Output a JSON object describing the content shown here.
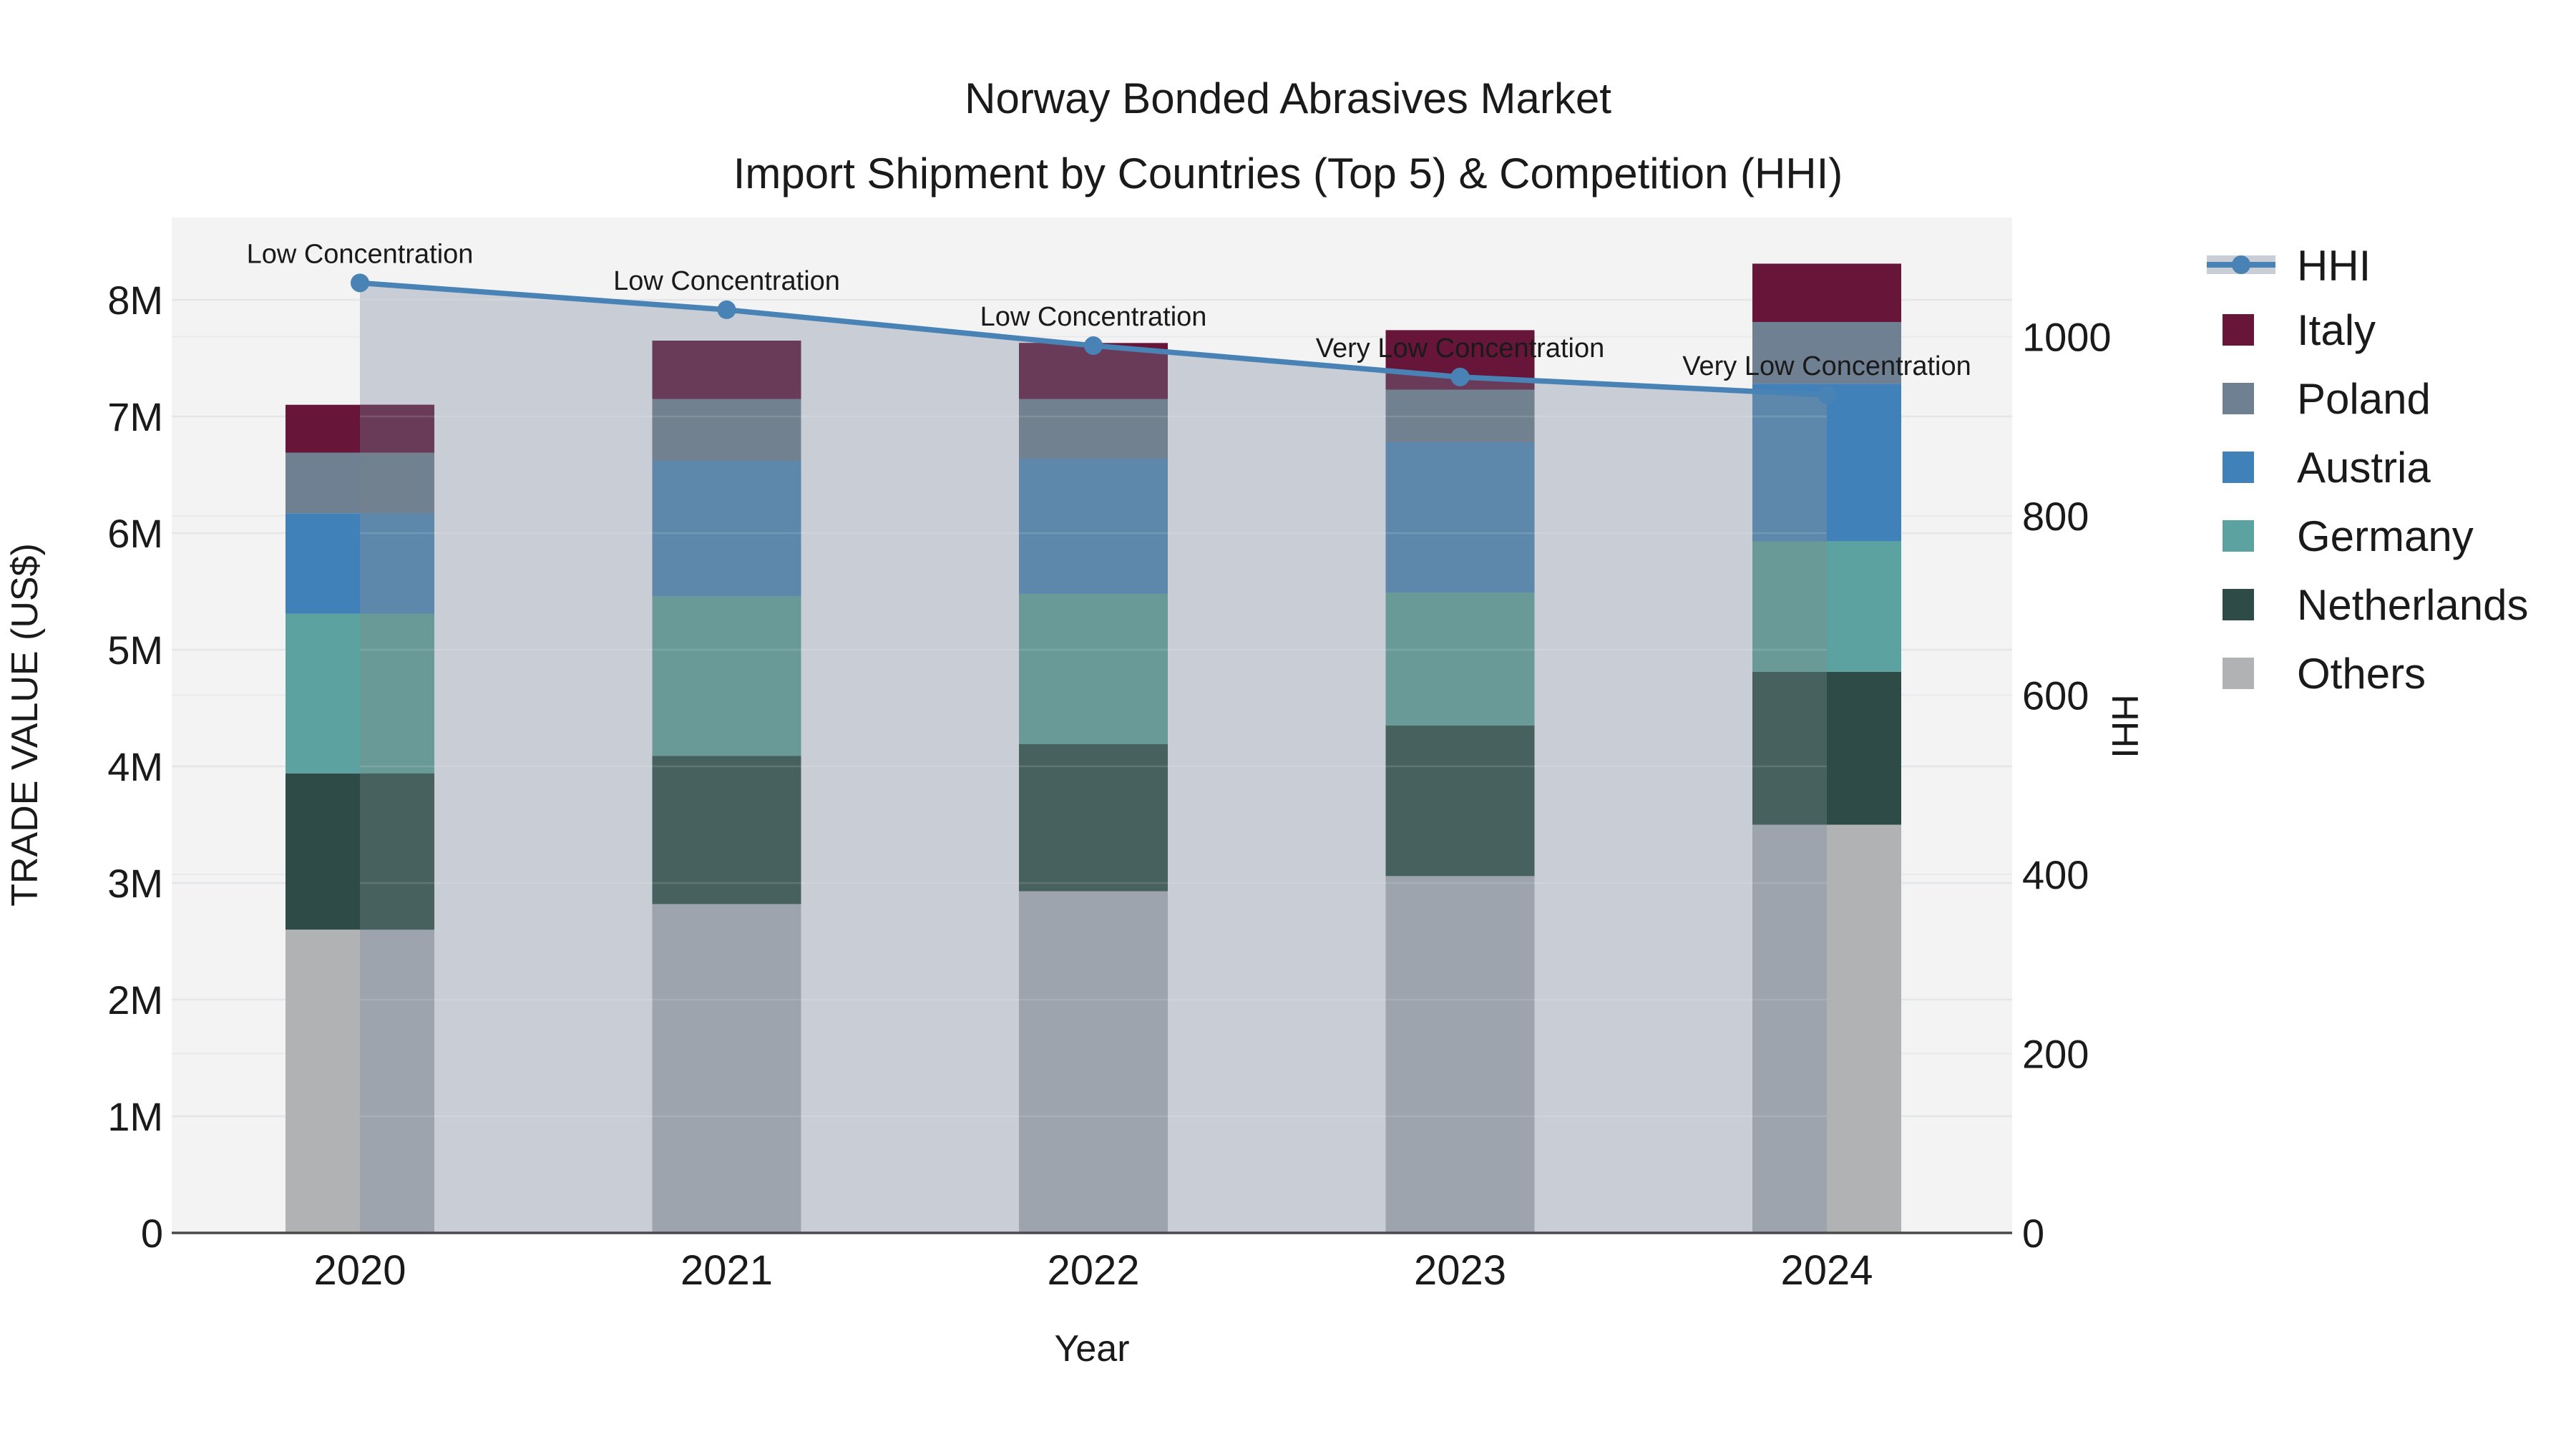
{
  "title": {
    "line1": "Norway Bonded Abrasives Market",
    "line2": "Import Shipment by Countries (Top 5) & Competition (HHI)"
  },
  "chart_data": {
    "type": "combo: stacked-bar + line",
    "x": [
      "2020",
      "2021",
      "2022",
      "2023",
      "2024"
    ],
    "xlabel": "Year",
    "ylabel": "TRADE VALUE (US$)",
    "y2label": "HHI",
    "yticks": [
      "0",
      "1M",
      "2M",
      "3M",
      "4M",
      "5M",
      "6M",
      "7M",
      "8M"
    ],
    "ytick_values_musd": [
      0,
      1,
      2,
      3,
      4,
      5,
      6,
      7,
      8
    ],
    "y2ticks": [
      "0",
      "200",
      "400",
      "600",
      "800",
      "1000"
    ],
    "y2tick_values": [
      0,
      200,
      400,
      600,
      800,
      1000
    ],
    "ylim_musd": [
      0,
      8.71
    ],
    "y2lim": [
      0,
      1133
    ],
    "grid": true,
    "legend_position": "right",
    "bar_stack_order_bottom_to_top": [
      "Others",
      "Netherlands",
      "Germany",
      "Austria",
      "Poland",
      "Italy"
    ],
    "bar_series": [
      {
        "name": "Others",
        "color": "#b0b2b3",
        "faded_color": "#9da4ae",
        "values_musd": [
          2.6,
          2.82,
          2.93,
          3.06,
          3.5
        ]
      },
      {
        "name": "Netherlands",
        "color": "#2e4b47",
        "faded_color": "#47615e",
        "values_musd": [
          1.34,
          1.27,
          1.26,
          1.29,
          1.31
        ]
      },
      {
        "name": "Germany",
        "color": "#5ba2a0",
        "faded_color": "#699a98",
        "values_musd": [
          1.37,
          1.37,
          1.29,
          1.14,
          1.12
        ]
      },
      {
        "name": "Austria",
        "color": "#4181ba",
        "faded_color": "#5d88ab",
        "values_musd": [
          0.86,
          1.16,
          1.16,
          1.29,
          1.35
        ]
      },
      {
        "name": "Poland",
        "color": "#6f8092",
        "faded_color": "#72818f",
        "values_musd": [
          0.52,
          0.53,
          0.51,
          0.45,
          0.53
        ]
      },
      {
        "name": "Italy",
        "color": "#671539",
        "faded_color": "#6a3b59",
        "values_musd": [
          0.41,
          0.5,
          0.48,
          0.51,
          0.5
        ]
      }
    ],
    "bar_totals_musd": [
      7.1,
      7.65,
      7.63,
      7.74,
      8.31
    ],
    "line_series": {
      "name": "HHI",
      "color": "#4983b5",
      "area_fill_color": "#c9cdd5",
      "values": [
        1060,
        1030,
        990,
        955,
        935
      ]
    },
    "annotations": [
      {
        "x": "2020",
        "text": "Low Concentration"
      },
      {
        "x": "2021",
        "text": "Low Concentration"
      },
      {
        "x": "2022",
        "text": "Low Concentration"
      },
      {
        "x": "2023",
        "text": "Very Low Concentration"
      },
      {
        "x": "2024",
        "text": "Very Low Concentration"
      }
    ],
    "legend_order": [
      "HHI",
      "Italy",
      "Poland",
      "Austria",
      "Germany",
      "Netherlands",
      "Others"
    ],
    "plot_bg_color": "#f3f3f4",
    "gridline_color": "#e4e5e7",
    "axis_line_color": "#4a4a4a"
  }
}
